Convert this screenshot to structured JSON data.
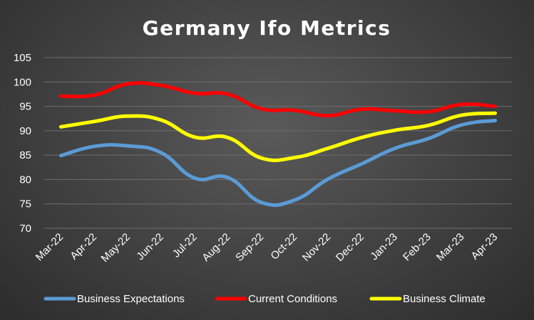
{
  "chart_data": {
    "type": "line",
    "title": "Germany Ifo Metrics",
    "xlabel": "",
    "ylabel": "",
    "ylim": [
      70,
      105
    ],
    "yticks": [
      70,
      75,
      80,
      85,
      90,
      95,
      100,
      105
    ],
    "grid": true,
    "legend_position": "bottom",
    "categories": [
      "Mar-22",
      "Apr-22",
      "May-22",
      "Jun-22",
      "Jul-22",
      "Aug-22",
      "Sep-22",
      "Oct-22",
      "Nov-22",
      "Dec-22",
      "Jan-23",
      "Feb-23",
      "Mar-23",
      "Apr-23"
    ],
    "series": [
      {
        "name": "Business Expectations",
        "color": "#5b9bd5",
        "values": [
          84.9,
          86.8,
          86.9,
          85.5,
          80.3,
          80.4,
          75.3,
          75.8,
          80.1,
          83.2,
          86.4,
          88.4,
          91.2,
          92.1
        ]
      },
      {
        "name": "Current Conditions",
        "color": "#ff0000",
        "values": [
          97.1,
          97.3,
          99.6,
          99.3,
          97.7,
          97.5,
          94.5,
          94.2,
          93.1,
          94.4,
          94.1,
          93.9,
          95.4,
          95.0
        ]
      },
      {
        "name": "Business Climate",
        "color": "#ffff00",
        "values": [
          90.8,
          91.9,
          93.0,
          92.2,
          88.7,
          88.6,
          84.4,
          84.5,
          86.4,
          88.6,
          90.1,
          91.1,
          93.2,
          93.6
        ]
      }
    ]
  }
}
